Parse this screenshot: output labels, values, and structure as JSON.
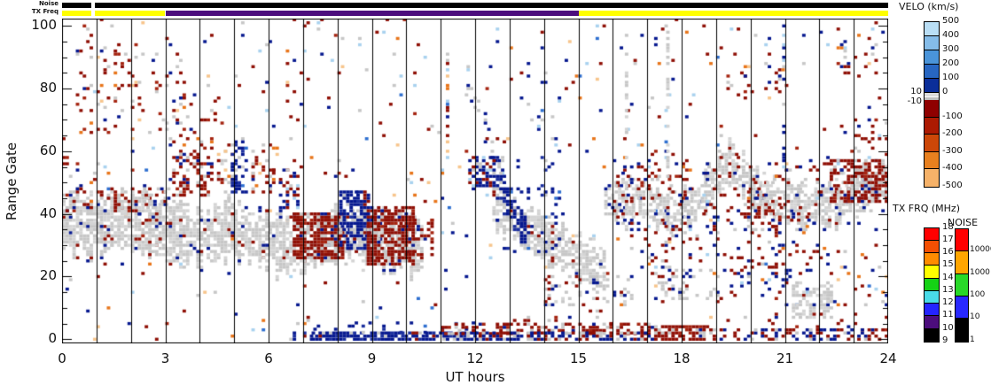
{
  "header": {
    "noise_bar_label": "Noise",
    "txfreq_bar_label": "TX Freq",
    "noise_segments": [
      {
        "t0": 0,
        "t1": 0.85,
        "c": "#000000"
      },
      {
        "t0": 0.95,
        "t1": 24,
        "c": "#000000"
      }
    ],
    "txfreq_segments": [
      {
        "t0": 0,
        "t1": 0.85,
        "c": "#ffff00"
      },
      {
        "t0": 0.95,
        "t1": 3,
        "c": "#ffff00"
      },
      {
        "t0": 3,
        "t1": 15,
        "c": "#4c0d7d"
      },
      {
        "t0": 15,
        "t1": 24,
        "c": "#ffff00"
      }
    ]
  },
  "axes": {
    "xlabel": "UT hours",
    "ylabel": "Range Gate",
    "x_ticks": [
      "0",
      "3",
      "6",
      "9",
      "12",
      "15",
      "18",
      "21",
      "24"
    ],
    "y_ticks": [
      "0",
      "20",
      "40",
      "60",
      "80",
      "100"
    ],
    "x_minor_step": 1,
    "y_minor_step": 5
  },
  "colorbars": {
    "velo": {
      "title": "VELO (km/s)",
      "upper_labels": [
        "500",
        "400",
        "300",
        "200",
        "100",
        "0"
      ],
      "lower_labels": [
        "-100",
        "-200",
        "-300",
        "-400",
        "-500"
      ],
      "zero_band_hi": "10",
      "zero_band_lo": "-10",
      "blue_colors": [
        "#b9def5",
        "#85bce8",
        "#4a94d9",
        "#2766c2",
        "#0b2e99"
      ],
      "gray_colors": [
        "#dcdcdc",
        "#ffffff",
        "#bfbfbf"
      ],
      "red_colors": [
        "#8f0000",
        "#ac1a02",
        "#cc4708",
        "#e8801f",
        "#f6b269"
      ]
    },
    "txfrq": {
      "title": "TX FRQ (MHz)",
      "labels": [
        "18",
        "17",
        "16",
        "15",
        "14",
        "13",
        "12",
        "11",
        "10",
        "9"
      ],
      "colors": [
        "#ff0000",
        "#f34f02",
        "#ff8c00",
        "#ffff00",
        "#15d215",
        "#49dbe8",
        "#2424ff",
        "#4c0d7d",
        "#000000"
      ]
    },
    "noise": {
      "title": "NOISE",
      "labels": [
        "10000",
        "1000",
        "100",
        "10",
        "1"
      ],
      "colors": [
        "#ff0000",
        "#ffa500",
        "#28d828",
        "#2828ff",
        "#000000"
      ]
    }
  },
  "chart_data": {
    "type": "rti-scatter",
    "xlabel": "UT hours",
    "ylabel": "Range Gate",
    "x_range": [
      0,
      24
    ],
    "y_range": [
      0,
      100
    ],
    "hour_line_step": 1,
    "seed": 42,
    "colors": {
      "red": "#8f0f05",
      "red2": "#a52410",
      "navy": "#06188f",
      "navy2": "#1b2f9e",
      "medblue": "#2e6fd0",
      "lblue": "#a9d2ef",
      "orange": "#e8751a",
      "peach": "#f7c58c",
      "gray": "#c7c7c7",
      "gray2": "#d4d4d4"
    },
    "palettes": {
      "mix": [
        [
          "red",
          0.28
        ],
        [
          "navy",
          0.22
        ],
        [
          "lblue",
          0.11
        ],
        [
          "gray",
          0.13
        ],
        [
          "orange",
          0.08
        ],
        [
          "peach",
          0.08
        ],
        [
          "medblue",
          0.05
        ],
        [
          "red2",
          0.05
        ]
      ],
      "grayband": [
        [
          "gray",
          0.55
        ],
        [
          "gray2",
          0.37
        ],
        [
          "red",
          0.04
        ],
        [
          "navy",
          0.04
        ]
      ],
      "graystreak": [
        [
          "gray",
          0.6
        ],
        [
          "gray2",
          0.4
        ]
      ],
      "graymix": [
        [
          "gray",
          0.6
        ],
        [
          "gray2",
          0.1
        ],
        [
          "red",
          0.15
        ],
        [
          "navy",
          0.15
        ]
      ],
      "redgray": [
        [
          "red",
          0.42
        ],
        [
          "red2",
          0.13
        ],
        [
          "gray",
          0.25
        ],
        [
          "navy",
          0.08
        ],
        [
          "orange",
          0.06
        ],
        [
          "peach",
          0.06
        ]
      ],
      "redmix": [
        [
          "red",
          0.6
        ],
        [
          "red2",
          0.12
        ],
        [
          "navy",
          0.1
        ],
        [
          "gray",
          0.18
        ]
      ],
      "reddense": [
        [
          "red",
          0.72
        ],
        [
          "red2",
          0.12
        ],
        [
          "gray",
          0.12
        ],
        [
          "navy",
          0.04
        ]
      ],
      "navymix": [
        [
          "navy",
          0.66
        ],
        [
          "navy2",
          0.12
        ],
        [
          "medblue",
          0.06
        ],
        [
          "gray",
          0.16
        ]
      ],
      "navydense": [
        [
          "navy",
          0.74
        ],
        [
          "navy2",
          0.12
        ],
        [
          "gray",
          0.09
        ],
        [
          "red",
          0.05
        ]
      ],
      "navyred": [
        [
          "navy",
          0.48
        ],
        [
          "red",
          0.28
        ],
        [
          "gray",
          0.14
        ],
        [
          "lblue",
          0.1
        ]
      ],
      "navgray": [
        [
          "navy",
          0.52
        ],
        [
          "gray",
          0.3
        ],
        [
          "lblue",
          0.18
        ]
      ],
      "mixband": [
        [
          "navy",
          0.42
        ],
        [
          "red",
          0.32
        ],
        [
          "gray",
          0.26
        ]
      ],
      "mixband2": [
        [
          "red",
          0.46
        ],
        [
          "navy",
          0.36
        ],
        [
          "gray",
          0.18
        ]
      ],
      "mixtop": [
        [
          "red",
          0.36
        ],
        [
          "navy",
          0.3
        ],
        [
          "gray",
          0.16
        ],
        [
          "orange",
          0.18
        ]
      ],
      "mixdark": [
        [
          "red",
          0.4
        ],
        [
          "navy",
          0.38
        ],
        [
          "gray",
          0.1
        ],
        [
          "lblue",
          0.06
        ],
        [
          "orange",
          0.06
        ]
      ]
    },
    "features": [
      {
        "k": "sparse",
        "t": [
          0,
          24
        ],
        "g": [
          5,
          102
        ],
        "d": 0.015,
        "p": "mix"
      },
      {
        "k": "sparse",
        "t": [
          0,
          7.2
        ],
        "g": [
          0,
          5
        ],
        "d": 0.02,
        "p": "mix"
      },
      {
        "k": "sparse",
        "t": [
          4.6,
          10.4
        ],
        "g": [
          58,
          100
        ],
        "d": 0.008,
        "p": "mix"
      },
      {
        "k": "sparse",
        "t": [
          14.5,
          24
        ],
        "g": [
          58,
          100
        ],
        "d": 0.008,
        "p": "mix"
      },
      {
        "k": "band",
        "pts": [
          [
            0,
            38
          ],
          [
            0.7,
            36
          ],
          [
            1.5,
            39
          ],
          [
            2.3,
            37
          ],
          [
            3.1,
            35
          ],
          [
            3.9,
            33
          ],
          [
            4.7,
            35
          ],
          [
            5.5,
            33
          ],
          [
            6.3,
            31
          ],
          [
            7.1,
            30
          ],
          [
            7.9,
            33
          ],
          [
            8.7,
            34
          ],
          [
            9.5,
            31
          ],
          [
            10.4,
            30
          ]
        ],
        "hw": 8,
        "d": 0.72,
        "p": "grayband"
      },
      {
        "k": "band",
        "pts": [
          [
            12.5,
            43
          ],
          [
            13.2,
            37
          ],
          [
            14.1,
            31
          ],
          [
            14.9,
            27
          ],
          [
            15.65,
            23
          ]
        ],
        "hw": 6,
        "d": 0.68,
        "p": "grayband"
      },
      {
        "k": "band",
        "pts": [
          [
            15.75,
            44
          ],
          [
            16.5,
            45
          ],
          [
            17.2,
            43
          ],
          [
            17.8,
            40
          ],
          [
            18.4,
            44
          ],
          [
            19.0,
            52
          ],
          [
            19.35,
            57
          ],
          [
            19.8,
            52
          ],
          [
            20.3,
            46
          ],
          [
            21.0,
            43
          ],
          [
            21.8,
            43
          ],
          [
            22.5,
            44
          ],
          [
            23.2,
            48
          ],
          [
            24,
            50
          ]
        ],
        "hw": 6,
        "d": 0.68,
        "p": "grayband"
      },
      {
        "k": "sparse",
        "t": [
          0.4,
          3.6
        ],
        "g": [
          66,
          92
        ],
        "d": 0.1,
        "p": "redgray"
      },
      {
        "k": "sparse",
        "t": [
          0.6,
          1.4
        ],
        "g": [
          90,
          98
        ],
        "d": 0.07,
        "p": "redgray"
      },
      {
        "k": "sparse",
        "t": [
          2.0,
          3.2
        ],
        "g": [
          86,
          97
        ],
        "d": 0.06,
        "p": "redgray"
      },
      {
        "k": "sparse",
        "t": [
          3.0,
          4.6
        ],
        "g": [
          58,
          78
        ],
        "d": 0.09,
        "p": "redmix"
      },
      {
        "k": "sparse",
        "t": [
          0.0,
          1.2
        ],
        "g": [
          44,
          58
        ],
        "d": 0.11,
        "p": "redgray"
      },
      {
        "k": "sparse",
        "t": [
          0,
          3.2
        ],
        "g": [
          30,
          48
        ],
        "d": 0.09,
        "p": "redmix"
      },
      {
        "k": "cluster",
        "t": [
          1.2,
          2.3
        ],
        "g": [
          38,
          48
        ],
        "d": 0.16,
        "p": "redmix"
      },
      {
        "k": "cluster",
        "t": [
          2.35,
          3.15
        ],
        "g": [
          42,
          49
        ],
        "d": 0.3,
        "p": "graymix"
      },
      {
        "k": "cluster",
        "t": [
          4.5,
          4.95
        ],
        "g": [
          44,
          58
        ],
        "d": 0.2,
        "p": "grayband"
      },
      {
        "k": "cluster",
        "t": [
          3.2,
          4.3
        ],
        "g": [
          46,
          59
        ],
        "d": 0.42,
        "p": "redmix"
      },
      {
        "k": "cluster",
        "t": [
          4.3,
          5.0
        ],
        "g": [
          50,
          62
        ],
        "d": 0.16,
        "p": "redgray"
      },
      {
        "k": "cluster",
        "t": [
          4.9,
          5.45
        ],
        "g": [
          47,
          63
        ],
        "d": 0.5,
        "p": "navymix"
      },
      {
        "k": "cluster",
        "t": [
          5.5,
          6.3
        ],
        "g": [
          47,
          62
        ],
        "d": 0.26,
        "p": "redgray"
      },
      {
        "k": "cluster",
        "t": [
          6.3,
          6.9
        ],
        "g": [
          40,
          54
        ],
        "d": 0.3,
        "p": "navyred"
      },
      {
        "k": "cluster",
        "t": [
          6.7,
          8.25
        ],
        "g": [
          26,
          40
        ],
        "d": 0.78,
        "p": "reddense"
      },
      {
        "k": "cluster",
        "t": [
          8.05,
          8.95
        ],
        "g": [
          29,
          47
        ],
        "d": 0.7,
        "p": "navydense"
      },
      {
        "k": "cluster",
        "t": [
          8.85,
          10.25
        ],
        "g": [
          24,
          42
        ],
        "d": 0.78,
        "p": "reddense"
      },
      {
        "k": "cluster",
        "t": [
          10.2,
          10.8
        ],
        "g": [
          27,
          38
        ],
        "d": 0.25,
        "p": "redmix"
      },
      {
        "k": "streak",
        "t": 11.15,
        "g": [
          55,
          92
        ],
        "d": 0.4,
        "p": "mix"
      },
      {
        "k": "band",
        "pts": [
          [
            11.75,
            83
          ],
          [
            12.3,
            66
          ],
          [
            12.75,
            55
          ]
        ],
        "hw": 4,
        "d": 0.28,
        "p": "navgray"
      },
      {
        "k": "cluster",
        "t": [
          11.8,
          12.6
        ],
        "g": [
          48,
          58
        ],
        "d": 0.5,
        "p": "navyred"
      },
      {
        "k": "band",
        "pts": [
          [
            12.6,
            52
          ],
          [
            13.05,
            40
          ],
          [
            13.35,
            36
          ]
        ],
        "hw": 5,
        "d": 0.5,
        "p": "navymix"
      },
      {
        "k": "sparse",
        "t": [
          12.6,
          14.6
        ],
        "g": [
          28,
          48
        ],
        "d": 0.12,
        "p": "navymix"
      },
      {
        "k": "sparse",
        "t": [
          13.2,
          14.6
        ],
        "g": [
          46,
          62
        ],
        "d": 0.06,
        "p": "navymix"
      },
      {
        "k": "sparse",
        "t": [
          13.4,
          14.4
        ],
        "g": [
          62,
          88
        ],
        "d": 0.07,
        "p": "navgray"
      },
      {
        "k": "sparse",
        "t": [
          16,
          24
        ],
        "g": [
          35,
          58
        ],
        "d": 0.06,
        "p": "mixdark"
      },
      {
        "k": "sparse",
        "t": [
          16.2,
          18.2
        ],
        "g": [
          44,
          56
        ],
        "d": 0.11,
        "p": "redmix"
      },
      {
        "k": "cluster",
        "t": [
          19.8,
          20.9
        ],
        "g": [
          33,
          45
        ],
        "d": 0.3,
        "p": "redmix"
      },
      {
        "k": "cluster",
        "t": [
          22.3,
          24
        ],
        "g": [
          44,
          57
        ],
        "d": 0.45,
        "p": "reddense"
      },
      {
        "k": "cluster",
        "t": [
          14.0,
          16.6
        ],
        "g": [
          11,
          20
        ],
        "d": 0.22,
        "p": "graymix"
      },
      {
        "k": "cluster",
        "t": [
          17.0,
          19.2
        ],
        "g": [
          12,
          23
        ],
        "d": 0.2,
        "p": "graymix"
      },
      {
        "k": "cluster",
        "t": [
          19.4,
          21.1
        ],
        "g": [
          14,
          27
        ],
        "d": 0.13,
        "p": "mixdark"
      },
      {
        "k": "cluster",
        "t": [
          21.2,
          22.4
        ],
        "g": [
          7,
          18
        ],
        "d": 0.45,
        "p": "grayband"
      },
      {
        "k": "sparse",
        "t": [
          16.5,
          22.5
        ],
        "g": [
          20,
          38
        ],
        "d": 0.09,
        "p": "mixdark"
      },
      {
        "k": "sparse",
        "t": [
          22.4,
          24
        ],
        "g": [
          10,
          30
        ],
        "d": 0.05,
        "p": "mix"
      },
      {
        "k": "cluster",
        "t": [
          6.6,
          7.3
        ],
        "g": [
          0,
          2.5
        ],
        "d": 0.3,
        "p": "navymix"
      },
      {
        "k": "cluster",
        "t": [
          7.25,
          12.1
        ],
        "g": [
          0,
          2.2
        ],
        "d": 0.78,
        "p": "navydense"
      },
      {
        "k": "sparse",
        "t": [
          7.3,
          12
        ],
        "g": [
          2.2,
          5.5
        ],
        "d": 0.11,
        "p": "navymix"
      },
      {
        "k": "cluster",
        "t": [
          11.0,
          17.2
        ],
        "g": [
          1.8,
          5.0
        ],
        "d": 0.4,
        "p": "redmix"
      },
      {
        "k": "cluster",
        "t": [
          12.0,
          17.2
        ],
        "g": [
          0,
          2
        ],
        "d": 0.65,
        "p": "mixband"
      },
      {
        "k": "cluster",
        "t": [
          17.2,
          18.7
        ],
        "g": [
          0,
          4.4
        ],
        "d": 0.78,
        "p": "reddense"
      },
      {
        "k": "cluster",
        "t": [
          18.7,
          24
        ],
        "g": [
          0,
          3
        ],
        "d": 0.42,
        "p": "mixband2"
      },
      {
        "k": "sparse",
        "t": [
          18.7,
          24
        ],
        "g": [
          3,
          8
        ],
        "d": 0.07,
        "p": "redmix"
      },
      {
        "k": "sparse",
        "t": [
          12.3,
          16.5
        ],
        "g": [
          5,
          9
        ],
        "d": 0.07,
        "p": "redmix"
      },
      {
        "k": "streak",
        "t": 16.35,
        "g": [
          28,
          97
        ],
        "d": 0.32,
        "p": "graystreak"
      },
      {
        "k": "streak",
        "t": 17.55,
        "g": [
          35,
          100
        ],
        "d": 0.38,
        "p": "graystreak"
      },
      {
        "k": "streak",
        "t": 20.92,
        "g": [
          55,
          100
        ],
        "d": 0.28,
        "p": "navgray"
      },
      {
        "k": "sparse",
        "t": [
          22.6,
          23.9
        ],
        "g": [
          84,
          98
        ],
        "d": 0.11,
        "p": "mixtop"
      },
      {
        "k": "sparse",
        "t": [
          23.0,
          24
        ],
        "g": [
          55,
          70
        ],
        "d": 0.1,
        "p": "redgray"
      },
      {
        "k": "sparse",
        "t": [
          20.4,
          21.1
        ],
        "g": [
          78,
          96
        ],
        "d": 0.07,
        "p": "mixdark"
      },
      {
        "k": "sparse",
        "t": [
          19.3,
          20.1
        ],
        "g": [
          74,
          92
        ],
        "d": 0.06,
        "p": "redgray"
      }
    ]
  }
}
